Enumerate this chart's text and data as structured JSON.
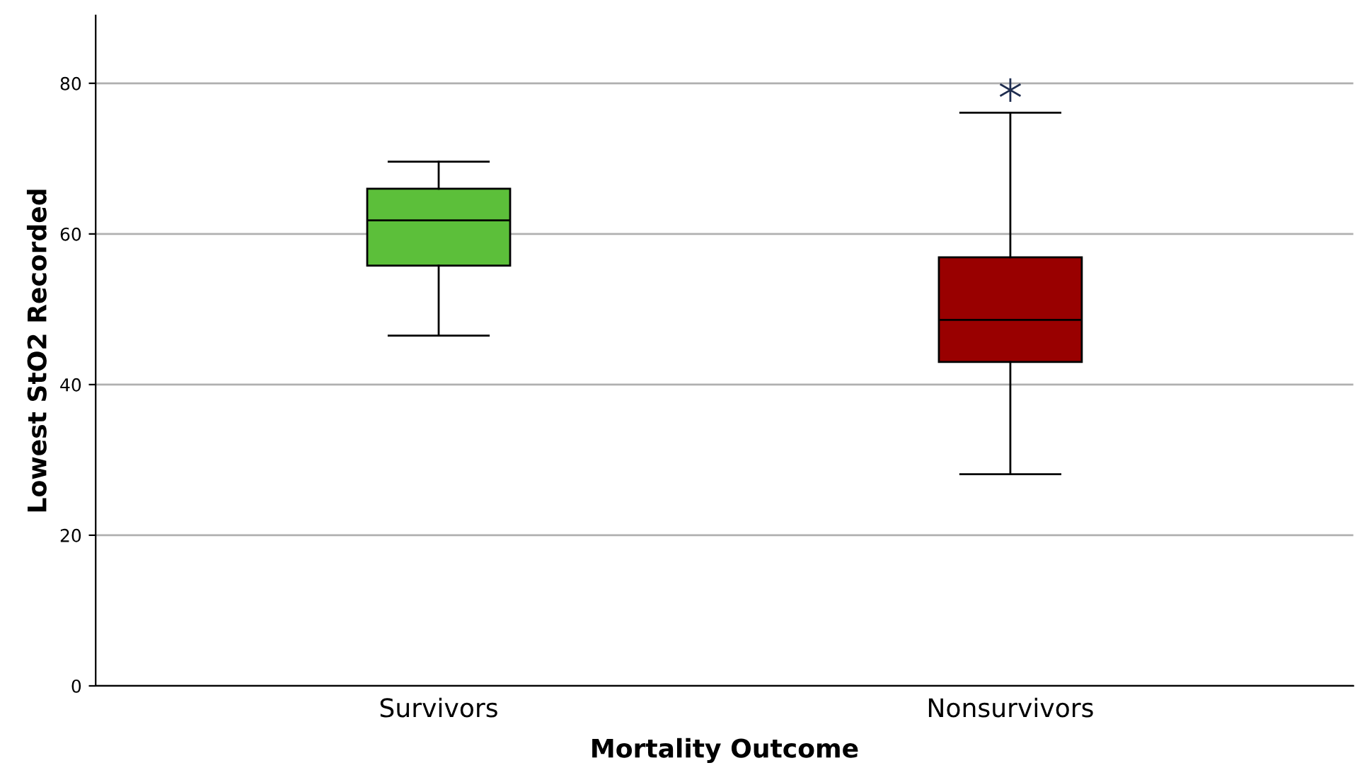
{
  "chart_data": {
    "type": "box",
    "xlabel": "Mortality Outcome",
    "ylabel": "Lowest StO2 Recorded",
    "categories": [
      "Survivors",
      "Nonsurvivors"
    ],
    "boxes": [
      {
        "low": 46.5,
        "q1": 55.8,
        "median": 61.8,
        "q3": 66.0,
        "high": 69.6
      },
      {
        "low": 28.1,
        "q1": 43.0,
        "median": 48.6,
        "q3": 56.9,
        "high": 76.1,
        "outliers": [
          79.1
        ]
      }
    ],
    "colors": [
      "#5cbf3a",
      "#990000"
    ],
    "ylim": [
      0,
      89
    ],
    "yticks": [
      0,
      20,
      40,
      60,
      80
    ],
    "grid": "y",
    "marker": "star",
    "legend": false
  }
}
